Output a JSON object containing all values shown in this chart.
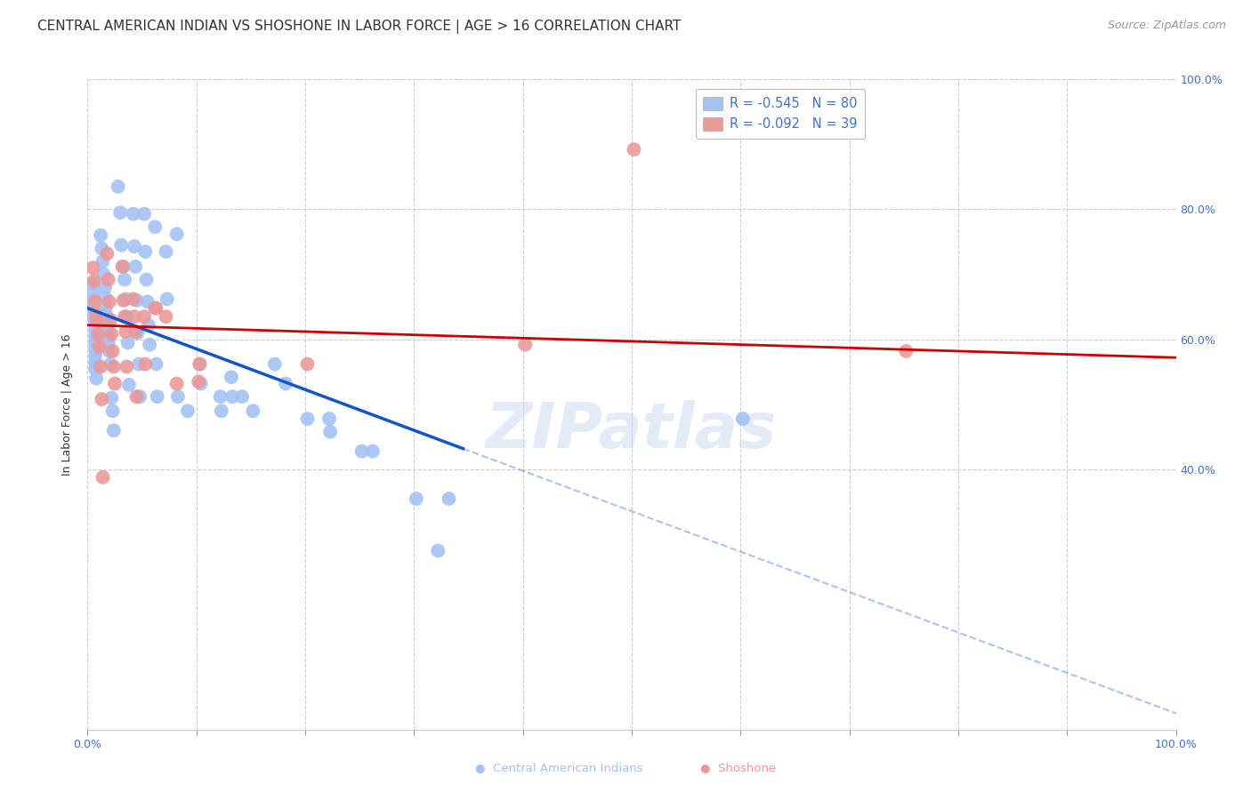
{
  "title": "CENTRAL AMERICAN INDIAN VS SHOSHONE IN LABOR FORCE | AGE > 16 CORRELATION CHART",
  "source": "Source: ZipAtlas.com",
  "ylabel": "In Labor Force | Age > 16",
  "xlim": [
    0.0,
    1.0
  ],
  "ylim": [
    0.0,
    1.0
  ],
  "blue_color": "#a4c2f4",
  "pink_color": "#ea9999",
  "blue_line_color": "#1155cc",
  "pink_line_color": "#cc0000",
  "watermark": "ZIPatlas",
  "blue_scatter": [
    [
      0.005,
      0.685
    ],
    [
      0.005,
      0.67
    ],
    [
      0.005,
      0.66
    ],
    [
      0.005,
      0.645
    ],
    [
      0.005,
      0.635
    ],
    [
      0.007,
      0.625
    ],
    [
      0.007,
      0.615
    ],
    [
      0.007,
      0.605
    ],
    [
      0.007,
      0.595
    ],
    [
      0.007,
      0.585
    ],
    [
      0.007,
      0.575
    ],
    [
      0.007,
      0.565
    ],
    [
      0.007,
      0.555
    ],
    [
      0.008,
      0.54
    ],
    [
      0.012,
      0.76
    ],
    [
      0.013,
      0.74
    ],
    [
      0.014,
      0.72
    ],
    [
      0.015,
      0.7
    ],
    [
      0.016,
      0.68
    ],
    [
      0.016,
      0.665
    ],
    [
      0.017,
      0.65
    ],
    [
      0.017,
      0.638
    ],
    [
      0.018,
      0.626
    ],
    [
      0.018,
      0.615
    ],
    [
      0.019,
      0.605
    ],
    [
      0.019,
      0.595
    ],
    [
      0.02,
      0.582
    ],
    [
      0.021,
      0.562
    ],
    [
      0.022,
      0.51
    ],
    [
      0.023,
      0.49
    ],
    [
      0.024,
      0.46
    ],
    [
      0.028,
      0.835
    ],
    [
      0.03,
      0.795
    ],
    [
      0.031,
      0.745
    ],
    [
      0.033,
      0.712
    ],
    [
      0.034,
      0.692
    ],
    [
      0.035,
      0.662
    ],
    [
      0.036,
      0.635
    ],
    [
      0.037,
      0.595
    ],
    [
      0.038,
      0.53
    ],
    [
      0.042,
      0.793
    ],
    [
      0.043,
      0.743
    ],
    [
      0.044,
      0.712
    ],
    [
      0.045,
      0.66
    ],
    [
      0.046,
      0.61
    ],
    [
      0.047,
      0.562
    ],
    [
      0.048,
      0.512
    ],
    [
      0.052,
      0.793
    ],
    [
      0.053,
      0.735
    ],
    [
      0.054,
      0.692
    ],
    [
      0.055,
      0.658
    ],
    [
      0.056,
      0.622
    ],
    [
      0.057,
      0.592
    ],
    [
      0.062,
      0.773
    ],
    [
      0.063,
      0.562
    ],
    [
      0.064,
      0.512
    ],
    [
      0.072,
      0.735
    ],
    [
      0.073,
      0.662
    ],
    [
      0.082,
      0.762
    ],
    [
      0.083,
      0.512
    ],
    [
      0.092,
      0.49
    ],
    [
      0.103,
      0.562
    ],
    [
      0.104,
      0.532
    ],
    [
      0.122,
      0.512
    ],
    [
      0.123,
      0.49
    ],
    [
      0.132,
      0.542
    ],
    [
      0.133,
      0.512
    ],
    [
      0.142,
      0.512
    ],
    [
      0.152,
      0.49
    ],
    [
      0.172,
      0.562
    ],
    [
      0.182,
      0.532
    ],
    [
      0.202,
      0.478
    ],
    [
      0.222,
      0.478
    ],
    [
      0.223,
      0.458
    ],
    [
      0.252,
      0.428
    ],
    [
      0.262,
      0.428
    ],
    [
      0.302,
      0.355
    ],
    [
      0.322,
      0.275
    ],
    [
      0.332,
      0.355
    ],
    [
      0.602,
      0.478
    ]
  ],
  "pink_scatter": [
    [
      0.005,
      0.71
    ],
    [
      0.006,
      0.69
    ],
    [
      0.007,
      0.658
    ],
    [
      0.008,
      0.638
    ],
    [
      0.009,
      0.628
    ],
    [
      0.01,
      0.608
    ],
    [
      0.011,
      0.588
    ],
    [
      0.012,
      0.558
    ],
    [
      0.013,
      0.508
    ],
    [
      0.014,
      0.388
    ],
    [
      0.018,
      0.732
    ],
    [
      0.019,
      0.692
    ],
    [
      0.02,
      0.658
    ],
    [
      0.021,
      0.63
    ],
    [
      0.022,
      0.608
    ],
    [
      0.023,
      0.582
    ],
    [
      0.024,
      0.558
    ],
    [
      0.025,
      0.532
    ],
    [
      0.032,
      0.712
    ],
    [
      0.033,
      0.66
    ],
    [
      0.034,
      0.635
    ],
    [
      0.035,
      0.612
    ],
    [
      0.036,
      0.558
    ],
    [
      0.042,
      0.662
    ],
    [
      0.043,
      0.635
    ],
    [
      0.044,
      0.612
    ],
    [
      0.045,
      0.512
    ],
    [
      0.052,
      0.635
    ],
    [
      0.053,
      0.562
    ],
    [
      0.062,
      0.648
    ],
    [
      0.063,
      0.648
    ],
    [
      0.072,
      0.635
    ],
    [
      0.082,
      0.532
    ],
    [
      0.102,
      0.535
    ],
    [
      0.103,
      0.562
    ],
    [
      0.202,
      0.562
    ],
    [
      0.402,
      0.592
    ],
    [
      0.502,
      0.892
    ],
    [
      0.752,
      0.582
    ]
  ],
  "blue_line_solid": [
    [
      0.0,
      0.648
    ],
    [
      0.345,
      0.432
    ]
  ],
  "blue_line_dashed": [
    [
      0.345,
      0.432
    ],
    [
      1.0,
      0.025
    ]
  ],
  "pink_line": [
    [
      0.0,
      0.622
    ],
    [
      1.0,
      0.572
    ]
  ],
  "grid_yticks": [
    0.4,
    0.6,
    0.8,
    1.0
  ],
  "grid_xticks": [
    0.0,
    0.1,
    0.2,
    0.3,
    0.4,
    0.5,
    0.6,
    0.7,
    0.8,
    0.9,
    1.0
  ],
  "grid_color": "#cccccc",
  "background_color": "#ffffff",
  "title_fontsize": 11,
  "axis_label_fontsize": 9,
  "tick_fontsize": 9,
  "source_fontsize": 9,
  "legend_blue_label": "R = -0.545   N = 80",
  "legend_pink_label": "R = -0.092   N = 39",
  "bottom_legend_blue": "Central American Indians",
  "bottom_legend_pink": "Shoshone"
}
